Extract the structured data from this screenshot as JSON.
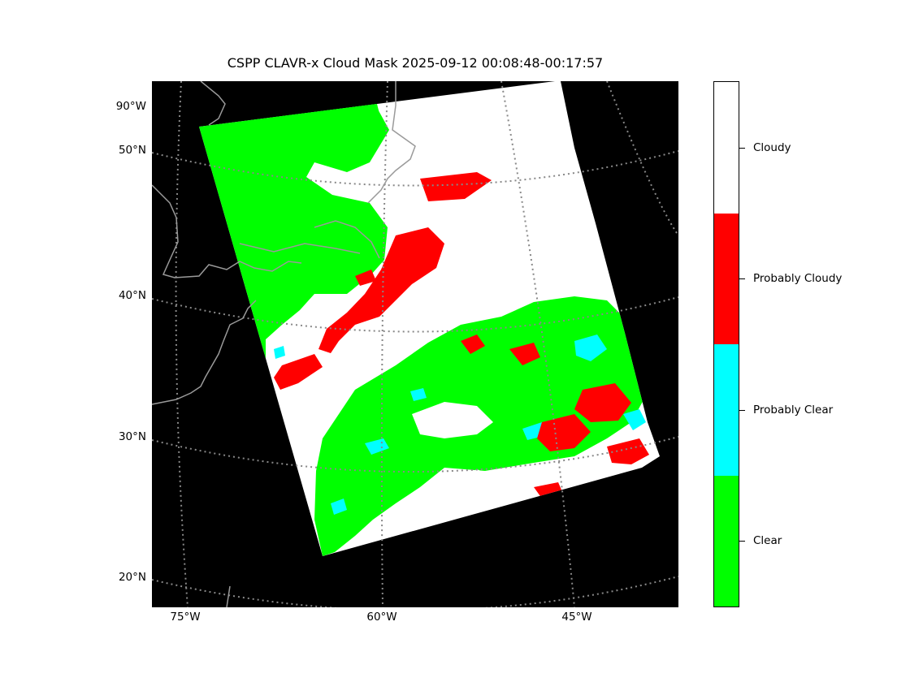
{
  "title": "CSPP CLAVR-x Cloud Mask 2025-09-12 00:08:48-00:17:57",
  "map": {
    "background": "#000000",
    "gridline_color": "#888888",
    "coastline_color": "#9a9a9a",
    "lat_labels": [
      "90°W",
      "50°N",
      "40°N",
      "30°N",
      "20°N"
    ],
    "lon_labels": [
      "75°W",
      "60°W",
      "45°W"
    ]
  },
  "legend": {
    "categories": [
      {
        "label": "Cloudy",
        "color": "#ffffff"
      },
      {
        "label": "Probably Cloudy",
        "color": "#ff0000"
      },
      {
        "label": "Probably Clear",
        "color": "#00ffff"
      },
      {
        "label": "Clear",
        "color": "#00ff00"
      }
    ]
  }
}
